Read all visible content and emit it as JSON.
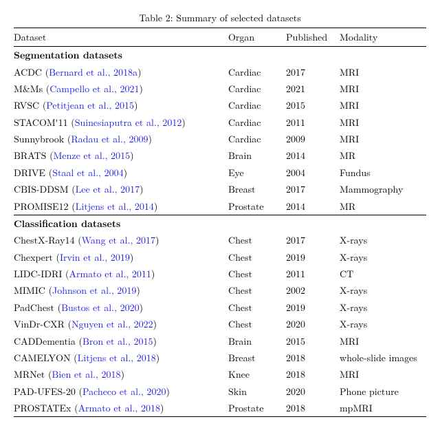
{
  "caption": "Table 2: Summary of selected datasets",
  "headers": [
    "Dataset",
    "Organ",
    "Published",
    "Modality"
  ],
  "sections": [
    {
      "title": "Segmentation datasets",
      "rows": [
        {
          "name": "ACDC",
          "cite": "Bernard et al., 2018a",
          "organ": "Cardiac",
          "year": "2017",
          "modality": "MRI"
        },
        {
          "name": "M&Ms",
          "cite": "Campello et al., 2021",
          "organ": "Cardiac",
          "year": "2021",
          "modality": "MRI"
        },
        {
          "name": "RVSC",
          "cite": "Petitjean et al., 2015",
          "organ": "Cardiac",
          "year": "2015",
          "modality": "MRI"
        },
        {
          "name": "STACOM'11",
          "cite": "Suinesiaputra et al., 2012",
          "organ": "Cardiac",
          "year": "2011",
          "modality": "MRI"
        },
        {
          "name": "Sunnybrook",
          "cite": "Radau et al., 2009",
          "organ": "Cardiac",
          "year": "2009",
          "modality": "MRI"
        },
        {
          "name": "BRATS",
          "cite": "Menze et al., 2015",
          "organ": "Brain",
          "year": "2014",
          "modality": "MR"
        },
        {
          "name": "DRIVE",
          "cite": "Staal et al., 2004",
          "organ": "Eye",
          "year": "2004",
          "modality": "Fundus"
        },
        {
          "name": "CBIS-DDSM",
          "cite": "Lee et al., 2017",
          "organ": "Breast",
          "year": "2017",
          "modality": "Mammography"
        },
        {
          "name": "PROMISE12",
          "cite": "Litjens et al., 2014",
          "organ": "Prostate",
          "year": "2014",
          "modality": "MR"
        }
      ]
    },
    {
      "title": "Classification datasets",
      "rows": [
        {
          "name": "ChestX-Ray14",
          "cite": "Wang et al., 2017",
          "organ": "Chest",
          "year": "2017",
          "modality": "X-rays"
        },
        {
          "name": "Chexpert",
          "cite": "Irvin et al., 2019",
          "organ": "Chest",
          "year": "2019",
          "modality": "X-rays"
        },
        {
          "name": "LIDC-IDRI",
          "cite": "Armato et al., 2011",
          "organ": "Chest",
          "year": "2011",
          "modality": "CT"
        },
        {
          "name": "MIMIC",
          "cite": "Johnson et al., 2019",
          "organ": "Chest",
          "year": "2002",
          "modality": "X-rays"
        },
        {
          "name": "PadChest",
          "cite": "Bustos et al., 2020",
          "organ": "Chest",
          "year": "2019",
          "modality": "X-rays"
        },
        {
          "name": "VinDr-CXR",
          "cite": "Nguyen et al., 2022",
          "organ": "Chest",
          "year": "2020",
          "modality": "X-rays"
        },
        {
          "name": "CADDementia",
          "cite": "Bron et al., 2015",
          "organ": "Brain",
          "year": "2015",
          "modality": "MRI"
        },
        {
          "name": "CAMELYON",
          "cite": "Litjens et al., 2018",
          "organ": "Breast",
          "year": "2018",
          "modality": "whole-slide images"
        },
        {
          "name": "MRNet",
          "cite": "Bien et al., 2018",
          "organ": "Knee",
          "year": "2018",
          "modality": "MRI"
        },
        {
          "name": "PAD-UFES-20",
          "cite": "Pacheco et al., 2020",
          "organ": "Skin",
          "year": "2020",
          "modality": "Phone picture"
        },
        {
          "name": "PROSTATEx",
          "cite": "Armato et al., 2018",
          "organ": "Prostate",
          "year": "2018",
          "modality": "mpMRI"
        }
      ]
    }
  ]
}
